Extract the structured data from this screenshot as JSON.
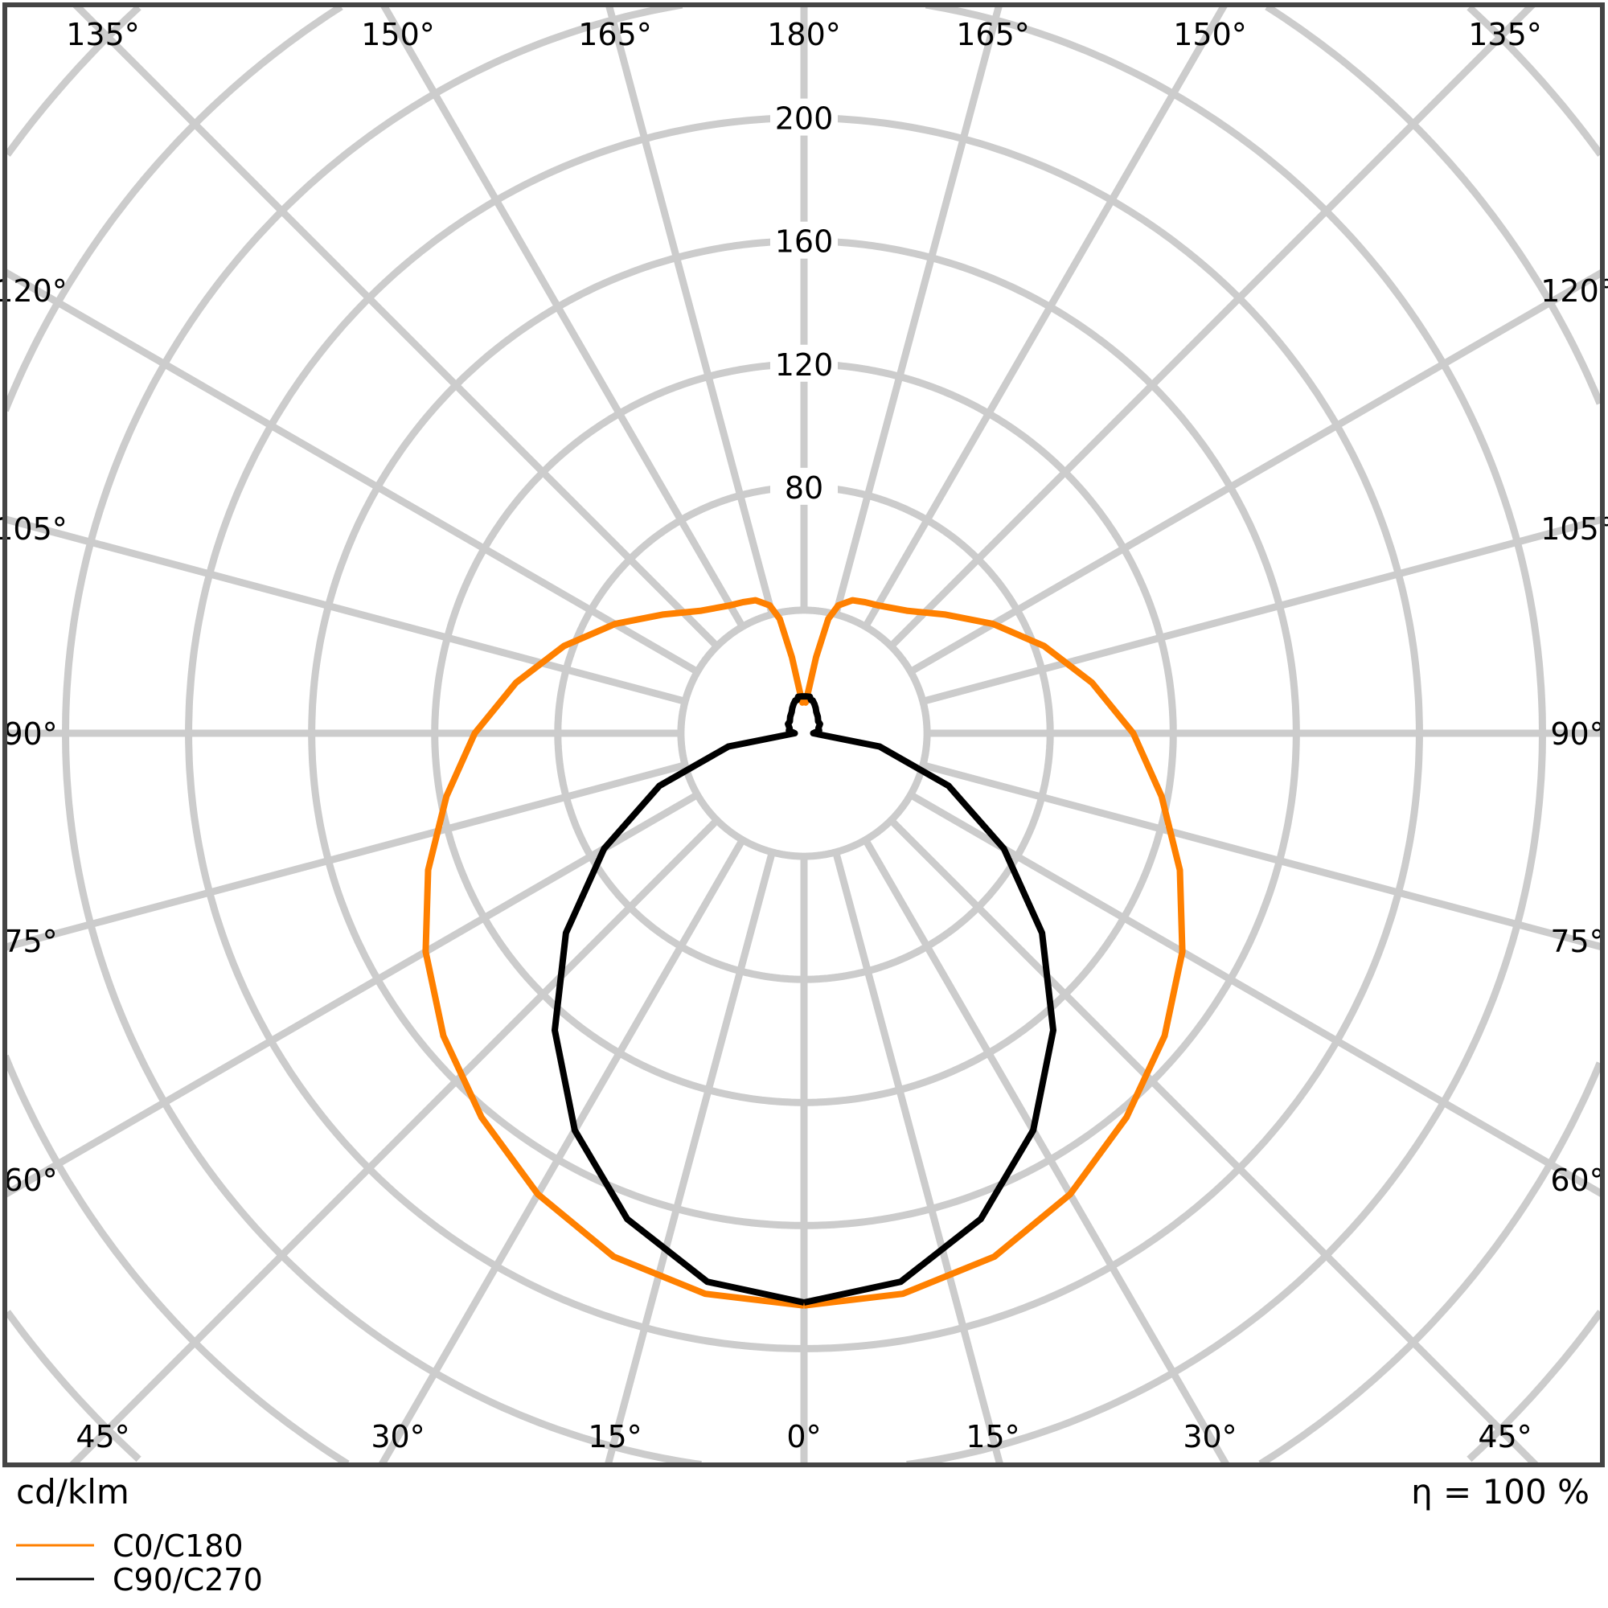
{
  "chart_data": {
    "type": "polar",
    "unit_label": "cd/klm",
    "efficiency_label": "η = 100 %",
    "radial_ticks": [
      80,
      120,
      160,
      200
    ],
    "radial_tick_labels": [
      "80",
      "120",
      "160",
      "200"
    ],
    "rings": [
      40,
      80,
      120,
      160,
      200,
      240,
      280,
      320
    ],
    "angle_labels": {
      "top": [
        "135°",
        "150°",
        "165°",
        "180°",
        "165°",
        "150°",
        "135°"
      ],
      "bottom": [
        "45°",
        "30°",
        "15°",
        "0°",
        "15°",
        "30°",
        "45°"
      ],
      "left": [
        "120°",
        "105°",
        "90°",
        "75°",
        "60°"
      ],
      "right": [
        "120°",
        "105°",
        "90°",
        "75°",
        "60°"
      ]
    },
    "grid": true,
    "legend_placement": "bottom-left",
    "angles": [
      0,
      10,
      20,
      30,
      40,
      50,
      60,
      70,
      80,
      90,
      100,
      110,
      120,
      130,
      140,
      150,
      155,
      160,
      165,
      168,
      171,
      174,
      177,
      180
    ],
    "series": [
      {
        "name": "C0/C180",
        "color": "#ff8000",
        "values": [
          186,
          185,
          181,
          173,
          163,
          153,
          142,
          130,
          118,
          107,
          95,
          83,
          71,
          60,
          52,
          48,
          47,
          46,
          43,
          38,
          25,
          14,
          10,
          11
        ]
      },
      {
        "name": "C90/C270",
        "color": "#000000",
        "values": [
          185,
          181,
          168,
          149,
          126,
          101,
          75,
          50,
          25,
          3,
          5,
          5,
          6,
          6,
          7,
          8,
          9,
          10,
          11,
          11,
          12,
          12,
          12,
          12
        ]
      }
    ]
  }
}
